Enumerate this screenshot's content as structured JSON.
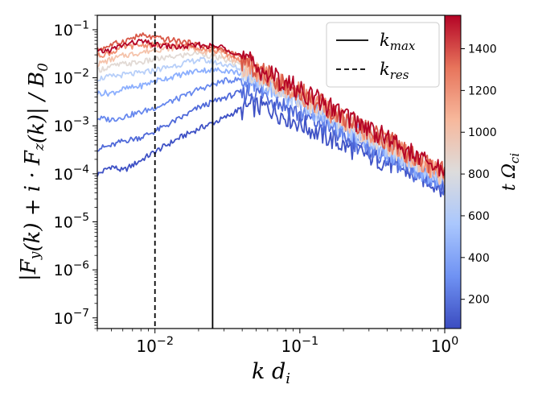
{
  "chart_data": {
    "type": "line",
    "x_scale": "log",
    "y_scale": "log",
    "xlim": [
      0.004,
      1.0
    ],
    "ylim": [
      6e-08,
      0.2
    ],
    "xlabel": "k d_i",
    "ylabel": "|F_y(k) + i · F_z(k)| / B_0",
    "x_ticks": [
      {
        "value": 0.01,
        "label": "10^-2"
      },
      {
        "value": 0.1,
        "label": "10^-1"
      },
      {
        "value": 1.0,
        "label": "10^0"
      }
    ],
    "y_ticks": [
      {
        "value": 1e-07,
        "label": "10^-7"
      },
      {
        "value": 1e-06,
        "label": "10^-6"
      },
      {
        "value": 1e-05,
        "label": "10^-5"
      },
      {
        "value": 0.0001,
        "label": "10^-4"
      },
      {
        "value": 0.001,
        "label": "10^-3"
      },
      {
        "value": 0.01,
        "label": "10^-2"
      },
      {
        "value": 0.1,
        "label": "10^-1"
      }
    ],
    "vlines": [
      {
        "label": "k_max",
        "x": 0.025,
        "style": "solid"
      },
      {
        "label": "k_res",
        "x": 0.01,
        "style": "dashed"
      }
    ],
    "legend_position": "top-right",
    "colorbar": {
      "label": "t Ω_ci",
      "range": [
        60,
        1560
      ],
      "ticks": [
        200,
        400,
        600,
        800,
        1000,
        1200,
        1400
      ],
      "colormap": [
        "#3b4cc0",
        "#6f92f3",
        "#aac7fd",
        "#dddcdc",
        "#f7b89c",
        "#e7745b",
        "#b40426"
      ]
    },
    "series": [
      {
        "t": 100,
        "color": "#3e51c5",
        "x": [
          0.004,
          0.005,
          0.006,
          0.008,
          0.01,
          0.015,
          0.02,
          0.03,
          0.045,
          0.06,
          0.1,
          0.2,
          0.4,
          0.7,
          1.0
        ],
        "y": [
          0.0001,
          0.00015,
          0.00012,
          0.0002,
          0.0003,
          0.0006,
          0.0009,
          0.0015,
          0.003,
          0.0028,
          0.0013,
          0.00045,
          0.0002,
          0.0001,
          6e-05
        ]
      },
      {
        "t": 200,
        "color": "#4f69d9",
        "x": [
          0.004,
          0.005,
          0.006,
          0.008,
          0.01,
          0.015,
          0.02,
          0.03,
          0.045,
          0.06,
          0.1,
          0.2,
          0.4,
          0.7,
          1.0
        ],
        "y": [
          0.00035,
          0.0004,
          0.0005,
          0.0006,
          0.0008,
          0.0015,
          0.0025,
          0.004,
          0.006,
          0.005,
          0.002,
          0.0007,
          0.00025,
          0.0001,
          7e-05
        ]
      },
      {
        "t": 300,
        "color": "#6788ee",
        "x": [
          0.004,
          0.005,
          0.006,
          0.008,
          0.01,
          0.015,
          0.02,
          0.03,
          0.045,
          0.06,
          0.1,
          0.2,
          0.4,
          0.7,
          1.0
        ],
        "y": [
          0.0015,
          0.0014,
          0.0016,
          0.002,
          0.0025,
          0.004,
          0.006,
          0.009,
          0.01,
          0.007,
          0.003,
          0.001,
          0.0003,
          0.00012,
          8e-05
        ]
      },
      {
        "t": 450,
        "color": "#8caffe",
        "x": [
          0.004,
          0.005,
          0.006,
          0.008,
          0.01,
          0.015,
          0.02,
          0.03,
          0.045,
          0.06,
          0.1,
          0.2,
          0.4,
          0.7,
          1.0
        ],
        "y": [
          0.005,
          0.005,
          0.006,
          0.007,
          0.009,
          0.012,
          0.015,
          0.015,
          0.012,
          0.008,
          0.0035,
          0.0011,
          0.00035,
          0.00013,
          8e-05
        ]
      },
      {
        "t": 650,
        "color": "#b7cff9",
        "x": [
          0.004,
          0.005,
          0.006,
          0.008,
          0.01,
          0.015,
          0.02,
          0.03,
          0.045,
          0.06,
          0.1,
          0.2,
          0.4,
          0.7,
          1.0
        ],
        "y": [
          0.01,
          0.011,
          0.012,
          0.013,
          0.015,
          0.02,
          0.025,
          0.02,
          0.014,
          0.009,
          0.004,
          0.0012,
          0.0004,
          0.00015,
          9e-05
        ]
      },
      {
        "t": 850,
        "color": "#e2dad5",
        "x": [
          0.004,
          0.005,
          0.006,
          0.008,
          0.01,
          0.015,
          0.02,
          0.03,
          0.045,
          0.06,
          0.1,
          0.2,
          0.4,
          0.7,
          1.0
        ],
        "y": [
          0.015,
          0.018,
          0.02,
          0.022,
          0.025,
          0.03,
          0.035,
          0.025,
          0.016,
          0.01,
          0.0045,
          0.0014,
          0.00045,
          0.00016,
          0.0001
        ]
      },
      {
        "t": 1000,
        "color": "#f5c4ac",
        "x": [
          0.004,
          0.005,
          0.006,
          0.008,
          0.01,
          0.015,
          0.02,
          0.03,
          0.045,
          0.06,
          0.1,
          0.2,
          0.4,
          0.7,
          1.0
        ],
        "y": [
          0.02,
          0.025,
          0.03,
          0.035,
          0.04,
          0.045,
          0.04,
          0.03,
          0.018,
          0.011,
          0.005,
          0.0015,
          0.0005,
          0.00018,
          0.0001
        ]
      },
      {
        "t": 1150,
        "color": "#f29072",
        "x": [
          0.004,
          0.005,
          0.006,
          0.008,
          0.01,
          0.015,
          0.02,
          0.03,
          0.045,
          0.06,
          0.1,
          0.2,
          0.4,
          0.7,
          1.0
        ],
        "y": [
          0.03,
          0.035,
          0.045,
          0.05,
          0.05,
          0.05,
          0.045,
          0.035,
          0.02,
          0.012,
          0.0055,
          0.0016,
          0.00055,
          0.00019,
          0.00011
        ]
      },
      {
        "t": 1300,
        "color": "#d95847",
        "x": [
          0.004,
          0.005,
          0.006,
          0.008,
          0.01,
          0.015,
          0.02,
          0.03,
          0.045,
          0.06,
          0.1,
          0.2,
          0.4,
          0.7,
          1.0
        ],
        "y": [
          0.04,
          0.05,
          0.06,
          0.08,
          0.07,
          0.06,
          0.05,
          0.04,
          0.022,
          0.013,
          0.006,
          0.0018,
          0.0006,
          0.0002,
          0.00012
        ]
      },
      {
        "t": 1500,
        "color": "#b40426",
        "x": [
          0.004,
          0.005,
          0.006,
          0.008,
          0.01,
          0.015,
          0.02,
          0.03,
          0.045,
          0.06,
          0.1,
          0.2,
          0.4,
          0.7,
          1.0
        ],
        "y": [
          0.035,
          0.04,
          0.05,
          0.06,
          0.05,
          0.045,
          0.05,
          0.045,
          0.025,
          0.014,
          0.0065,
          0.002,
          0.00065,
          0.00022,
          0.00013
        ]
      }
    ]
  }
}
